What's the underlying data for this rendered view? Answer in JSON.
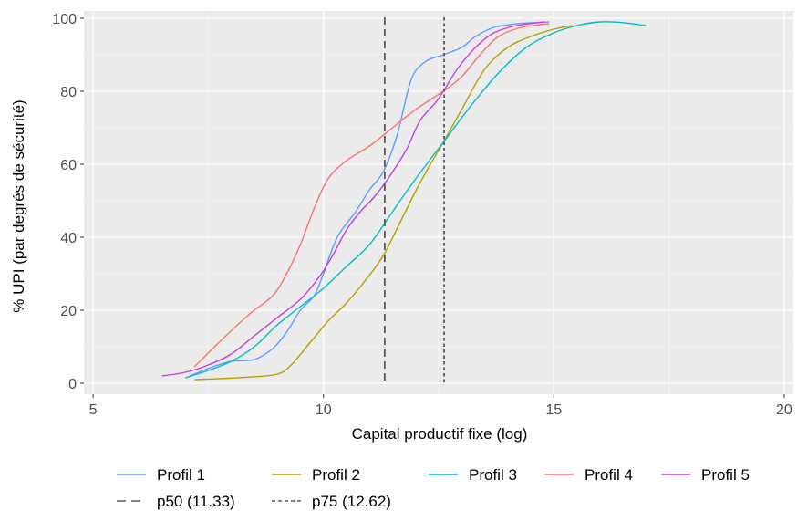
{
  "chart_data": {
    "type": "line",
    "title": "",
    "xlabel": "Capital productif fixe (log)",
    "ylabel": "% UPI (par degrés de sécurité)",
    "xlim": [
      4.8,
      20.2
    ],
    "ylim": [
      -3,
      102
    ],
    "xticks": [
      5,
      10,
      15,
      20
    ],
    "xtick_labels": [
      "5",
      "10",
      "15",
      "20"
    ],
    "yticks": [
      0,
      20,
      40,
      60,
      80,
      100
    ],
    "ytick_labels": [
      "0",
      "20",
      "40",
      "60",
      "80",
      "100"
    ],
    "grid": true,
    "legend_position": "bottom",
    "series": [
      {
        "name": "Profil 1",
        "color": "#619CFF",
        "points": [
          [
            7.1,
            2
          ],
          [
            7.6,
            4.5
          ],
          [
            8.0,
            6
          ],
          [
            8.5,
            6.5
          ],
          [
            8.9,
            9.5
          ],
          [
            9.2,
            14
          ],
          [
            9.5,
            20
          ],
          [
            9.8,
            24
          ],
          [
            10.0,
            30
          ],
          [
            10.3,
            40
          ],
          [
            10.7,
            47
          ],
          [
            11.0,
            53
          ],
          [
            11.3,
            58
          ],
          [
            11.6,
            68
          ],
          [
            11.9,
            83
          ],
          [
            12.2,
            88
          ],
          [
            12.6,
            90
          ],
          [
            13.0,
            92
          ],
          [
            13.3,
            95
          ],
          [
            13.7,
            97.5
          ],
          [
            14.2,
            98.5
          ],
          [
            14.9,
            99
          ]
        ]
      },
      {
        "name": "Profil 2",
        "color": "#B79F00",
        "points": [
          [
            7.2,
            1
          ],
          [
            7.8,
            1.3
          ],
          [
            8.4,
            1.7
          ],
          [
            9.0,
            2.5
          ],
          [
            9.3,
            5
          ],
          [
            9.7,
            11
          ],
          [
            10.1,
            17
          ],
          [
            10.5,
            22
          ],
          [
            10.9,
            28
          ],
          [
            11.3,
            35
          ],
          [
            11.7,
            45
          ],
          [
            12.1,
            55
          ],
          [
            12.6,
            66
          ],
          [
            13.0,
            75
          ],
          [
            13.5,
            86
          ],
          [
            14.0,
            92
          ],
          [
            14.5,
            95
          ],
          [
            15.0,
            97
          ],
          [
            15.4,
            98
          ]
        ]
      },
      {
        "name": "Profil 3",
        "color": "#00BFC4",
        "points": [
          [
            7.0,
            1.5
          ],
          [
            7.5,
            3.5
          ],
          [
            8.0,
            6
          ],
          [
            8.5,
            10
          ],
          [
            9.0,
            16
          ],
          [
            9.5,
            21
          ],
          [
            10.0,
            26
          ],
          [
            10.5,
            32
          ],
          [
            11.0,
            38
          ],
          [
            11.5,
            47
          ],
          [
            12.0,
            56
          ],
          [
            12.6,
            66
          ],
          [
            13.2,
            76
          ],
          [
            13.8,
            85
          ],
          [
            14.4,
            92
          ],
          [
            15.0,
            96
          ],
          [
            15.5,
            98
          ],
          [
            16.0,
            99
          ],
          [
            16.5,
            98.8
          ],
          [
            17.0,
            98
          ]
        ]
      },
      {
        "name": "Profil 4",
        "color": "#F8766D",
        "points": [
          [
            7.2,
            4.5
          ],
          [
            7.8,
            12
          ],
          [
            8.4,
            19
          ],
          [
            8.9,
            24
          ],
          [
            9.2,
            30
          ],
          [
            9.5,
            38
          ],
          [
            9.8,
            48
          ],
          [
            10.1,
            56
          ],
          [
            10.5,
            61
          ],
          [
            11.0,
            65
          ],
          [
            11.5,
            70
          ],
          [
            12.0,
            75
          ],
          [
            12.6,
            80
          ],
          [
            13.0,
            84
          ],
          [
            13.4,
            90
          ],
          [
            13.8,
            95
          ],
          [
            14.3,
            97.5
          ],
          [
            14.9,
            98.5
          ]
        ]
      },
      {
        "name": "Profil 5",
        "color": "#C33EE0",
        "points": [
          [
            6.5,
            2
          ],
          [
            7.0,
            3
          ],
          [
            7.5,
            5
          ],
          [
            8.0,
            8
          ],
          [
            8.5,
            13
          ],
          [
            9.0,
            18
          ],
          [
            9.5,
            23
          ],
          [
            9.9,
            29
          ],
          [
            10.2,
            35
          ],
          [
            10.5,
            42
          ],
          [
            10.8,
            47
          ],
          [
            11.1,
            51
          ],
          [
            11.4,
            56
          ],
          [
            11.8,
            64
          ],
          [
            12.1,
            72
          ],
          [
            12.5,
            78
          ],
          [
            12.9,
            86
          ],
          [
            13.3,
            92
          ],
          [
            13.7,
            96
          ],
          [
            14.2,
            98
          ],
          [
            14.8,
            99
          ]
        ]
      }
    ],
    "reference_lines": [
      {
        "name": "p50 (11.33)",
        "x": 11.33,
        "style": "dashed",
        "color": "#595959"
      },
      {
        "name": "p75 (12.62)",
        "x": 12.62,
        "style": "dotted",
        "color": "#595959"
      }
    ]
  }
}
